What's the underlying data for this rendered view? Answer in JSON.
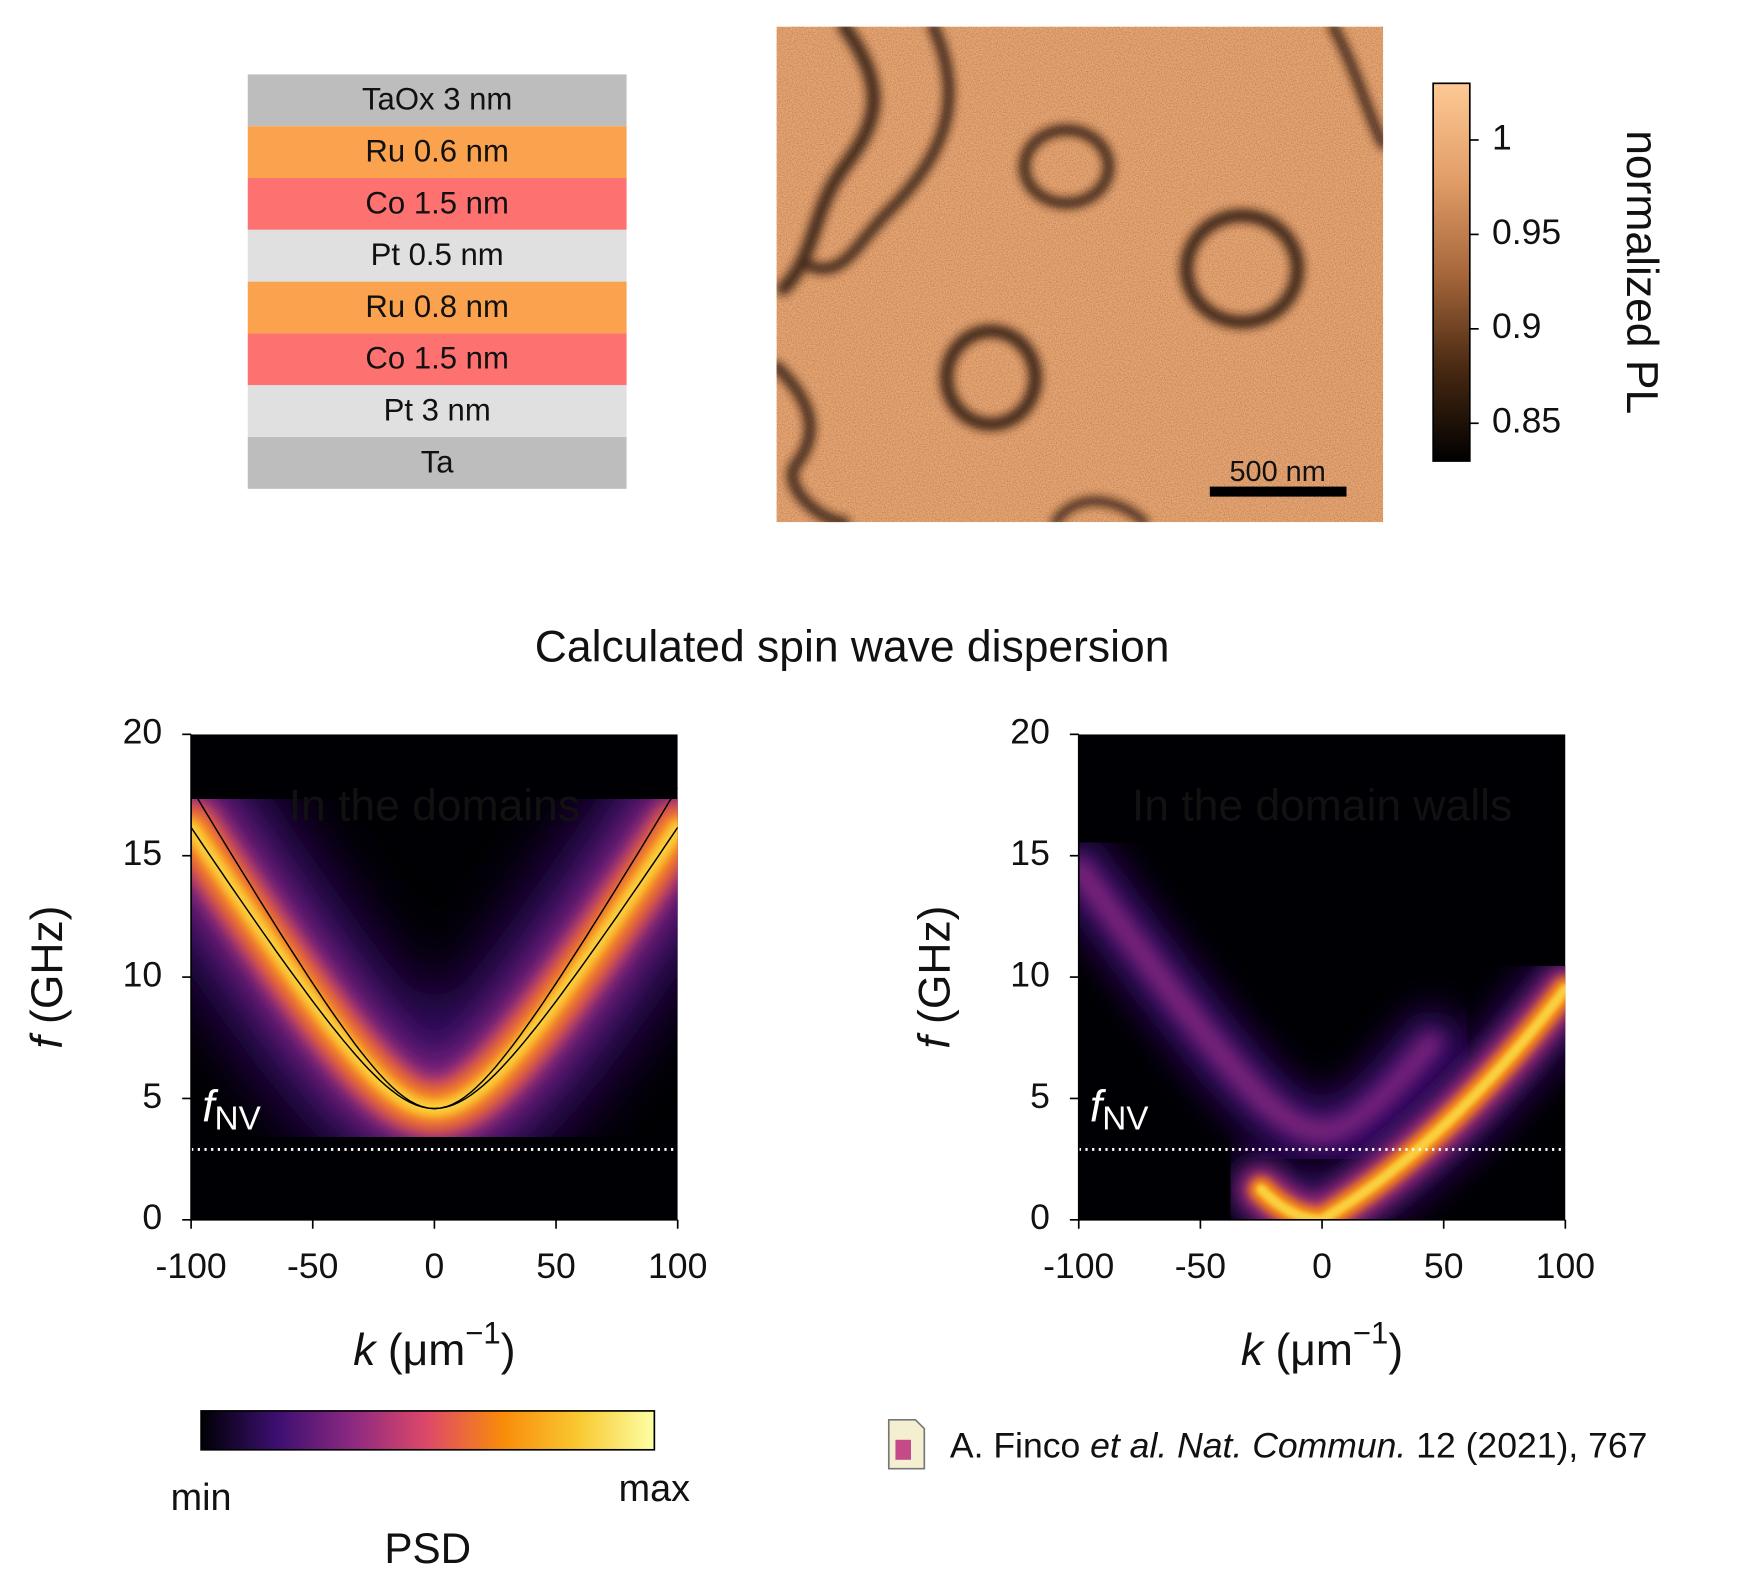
{
  "layers": [
    {
      "label": "TaOx 3 nm",
      "color": "#bdbdbd"
    },
    {
      "label": "Ru 0.6 nm",
      "color": "#fba24f"
    },
    {
      "label": "Co 1.5 nm",
      "color": "#fe7171"
    },
    {
      "label": "Pt 0.5 nm",
      "color": "#e0e0e0"
    },
    {
      "label": "Ru 0.8 nm",
      "color": "#fba24f"
    },
    {
      "label": "Co 1.5 nm",
      "color": "#fe7171"
    },
    {
      "label": "Pt 3 nm",
      "color": "#e0e0e0"
    },
    {
      "label": "Ta",
      "color": "#bdbdbd"
    }
  ],
  "scale_bar": "500 nm",
  "title": "Calculated spin wave dispersion",
  "reference": {
    "authors": "A. Finco",
    "etal": "et al.",
    "journal": "Nat. Commun.",
    "details": "12 (2021), 767"
  },
  "chart_data": [
    {
      "type": "colorbar",
      "label": "normalized PL",
      "ylim": [
        0.83,
        1.03
      ],
      "yticks": [
        1,
        0.95,
        0.9,
        0.85
      ],
      "colors": [
        "#000000",
        "#4a2a12",
        "#a8683c",
        "#e39e68",
        "#fdc995"
      ]
    },
    {
      "type": "heatmap",
      "annotation": "In the domains",
      "x_label": {
        "symbol": "k",
        "open": "(μm",
        "sup": "−1",
        "close": ")"
      },
      "y_label": {
        "symbol": "f",
        "unit": "(GHz)"
      },
      "xlim": [
        -100,
        100
      ],
      "ylim": [
        0,
        20
      ],
      "xticks": [
        -100,
        -50,
        0,
        50,
        100
      ],
      "yticks": [
        0,
        5,
        10,
        15,
        20
      ],
      "f_nv": {
        "symbol": "f",
        "subscript": "NV",
        "value": 2.9
      }
    },
    {
      "type": "heatmap",
      "annotation": "In the domain walls",
      "x_label": {
        "symbol": "k",
        "open": "(μm",
        "sup": "−1",
        "close": ")"
      },
      "y_label": {
        "symbol": "f",
        "unit": "(GHz)"
      },
      "xlim": [
        -100,
        100
      ],
      "ylim": [
        0,
        20
      ],
      "xticks": [
        -100,
        -50,
        0,
        50,
        100
      ],
      "yticks": [
        0,
        5,
        10,
        15,
        20
      ],
      "f_nv": {
        "symbol": "f",
        "subscript": "NV",
        "value": 2.9
      }
    },
    {
      "type": "colorbar_h",
      "label": "PSD",
      "min_label": "min",
      "max_label": "max",
      "colors": [
        "#000004",
        "#3b0f70",
        "#8c2981",
        "#de4968",
        "#f98c0a",
        "#f9c932",
        "#fcffa4"
      ]
    }
  ]
}
